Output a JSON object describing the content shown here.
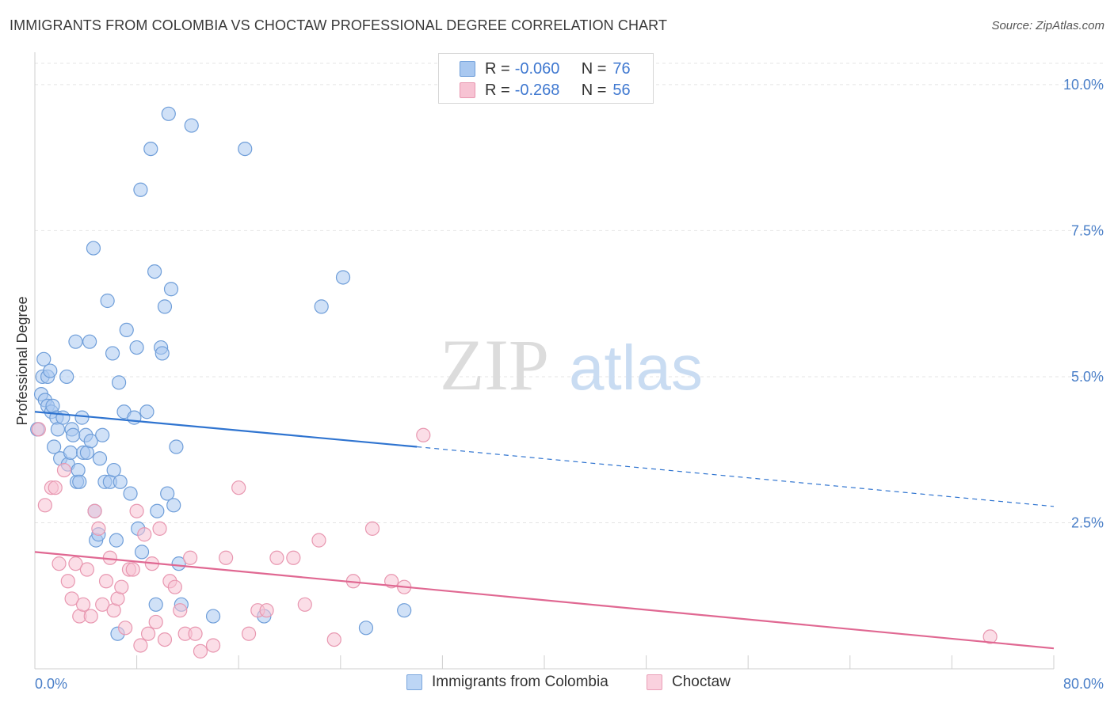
{
  "header": {
    "title": "IMMIGRANTS FROM COLOMBIA VS CHOCTAW PROFESSIONAL DEGREE CORRELATION CHART",
    "source": "Source: ZipAtlas.com"
  },
  "watermark": {
    "zip": "ZIP",
    "atlas": "atlas"
  },
  "stats_legend": {
    "rows": [
      {
        "r_label": "R =",
        "r_value": "-0.060",
        "n_label": "N =",
        "n_value": "76",
        "color": "#a9c8f0",
        "border": "#6f9ed9"
      },
      {
        "r_label": "R =",
        "r_value": "-0.268",
        "n_label": "N =",
        "n_value": "56",
        "color": "#f7c3d3",
        "border": "#e897b0"
      }
    ]
  },
  "bottom_legend": [
    {
      "label": "Immigrants from Colombia",
      "color": "#bdd6f5",
      "border": "#7aa6dd"
    },
    {
      "label": "Choctaw",
      "color": "#fad1de",
      "border": "#ea9fb7"
    }
  ],
  "chart_data": {
    "type": "scatter",
    "title": "IMMIGRANTS FROM COLOMBIA VS CHOCTAW PROFESSIONAL DEGREE CORRELATION CHART",
    "xlabel": "",
    "ylabel": "Professional Degree",
    "xlim": [
      0,
      80
    ],
    "ylim": [
      0,
      10.5
    ],
    "x_tick_labels": [
      "0.0%",
      "80.0%"
    ],
    "y_ticks": [
      2.5,
      5.0,
      7.5,
      10.0
    ],
    "y_tick_labels": [
      "2.5%",
      "5.0%",
      "7.5%",
      "10.0%"
    ],
    "grid": "horizontal dashed",
    "series": [
      {
        "name": "Immigrants from Colombia",
        "color": "#a9c8f0",
        "stroke": "#6f9ed9",
        "line_color": "#2f74d0",
        "trend": {
          "x0": 0,
          "y0": 4.4,
          "x1": 30,
          "y1": 3.8,
          "x_dash_end": 80,
          "y_dash_end": 2.78
        },
        "points": [
          [
            0.2,
            4.1
          ],
          [
            0.5,
            4.7
          ],
          [
            0.6,
            5.0
          ],
          [
            0.7,
            5.3
          ],
          [
            0.8,
            4.6
          ],
          [
            1.0,
            4.5
          ],
          [
            1.0,
            5.0
          ],
          [
            1.2,
            5.1
          ],
          [
            1.3,
            4.4
          ],
          [
            1.4,
            4.5
          ],
          [
            1.5,
            3.8
          ],
          [
            1.7,
            4.3
          ],
          [
            1.8,
            4.1
          ],
          [
            2.0,
            3.6
          ],
          [
            2.2,
            4.3
          ],
          [
            2.5,
            5.0
          ],
          [
            2.6,
            3.5
          ],
          [
            2.8,
            3.7
          ],
          [
            2.9,
            4.1
          ],
          [
            3.0,
            4.0
          ],
          [
            3.2,
            5.6
          ],
          [
            3.3,
            3.2
          ],
          [
            3.4,
            3.4
          ],
          [
            3.5,
            3.2
          ],
          [
            3.7,
            4.3
          ],
          [
            3.8,
            3.7
          ],
          [
            4.0,
            4.0
          ],
          [
            4.1,
            3.7
          ],
          [
            4.3,
            5.6
          ],
          [
            4.4,
            3.9
          ],
          [
            4.6,
            7.2
          ],
          [
            4.7,
            2.7
          ],
          [
            4.8,
            2.2
          ],
          [
            5.0,
            2.3
          ],
          [
            5.1,
            3.6
          ],
          [
            5.3,
            4.0
          ],
          [
            5.5,
            3.2
          ],
          [
            5.7,
            6.3
          ],
          [
            5.9,
            3.2
          ],
          [
            6.1,
            5.4
          ],
          [
            6.2,
            3.4
          ],
          [
            6.4,
            2.2
          ],
          [
            6.5,
            0.6
          ],
          [
            6.6,
            4.9
          ],
          [
            6.7,
            3.2
          ],
          [
            7.0,
            4.4
          ],
          [
            7.2,
            5.8
          ],
          [
            7.5,
            3.0
          ],
          [
            7.8,
            4.3
          ],
          [
            8.0,
            5.5
          ],
          [
            8.1,
            2.4
          ],
          [
            8.3,
            8.2
          ],
          [
            8.4,
            2.0
          ],
          [
            8.8,
            4.4
          ],
          [
            9.1,
            8.9
          ],
          [
            9.4,
            6.8
          ],
          [
            9.6,
            2.7
          ],
          [
            9.9,
            5.5
          ],
          [
            10.0,
            5.4
          ],
          [
            10.2,
            6.2
          ],
          [
            10.4,
            3.0
          ],
          [
            10.5,
            9.5
          ],
          [
            10.7,
            6.5
          ],
          [
            10.9,
            2.8
          ],
          [
            11.1,
            3.8
          ],
          [
            11.3,
            1.8
          ],
          [
            11.5,
            1.1
          ],
          [
            12.3,
            9.3
          ],
          [
            14.0,
            0.9
          ],
          [
            16.5,
            8.9
          ],
          [
            18.0,
            0.9
          ],
          [
            22.5,
            6.2
          ],
          [
            24.2,
            6.7
          ],
          [
            26.0,
            0.7
          ],
          [
            29.0,
            1.0
          ],
          [
            9.5,
            1.1
          ]
        ]
      },
      {
        "name": "Choctaw",
        "color": "#f7c3d3",
        "stroke": "#e897b0",
        "line_color": "#e06892",
        "trend": {
          "x0": 0,
          "y0": 2.0,
          "x1": 80,
          "y1": 0.35
        },
        "points": [
          [
            0.3,
            4.1
          ],
          [
            0.8,
            2.8
          ],
          [
            1.3,
            3.1
          ],
          [
            1.6,
            3.1
          ],
          [
            1.9,
            1.8
          ],
          [
            2.3,
            3.4
          ],
          [
            2.6,
            1.5
          ],
          [
            2.9,
            1.2
          ],
          [
            3.2,
            1.8
          ],
          [
            3.5,
            0.9
          ],
          [
            3.8,
            1.1
          ],
          [
            4.1,
            1.7
          ],
          [
            4.4,
            0.9
          ],
          [
            4.7,
            2.7
          ],
          [
            5.0,
            2.4
          ],
          [
            5.3,
            1.1
          ],
          [
            5.6,
            1.5
          ],
          [
            5.9,
            1.9
          ],
          [
            6.2,
            1.0
          ],
          [
            6.5,
            1.2
          ],
          [
            6.8,
            1.4
          ],
          [
            7.1,
            0.7
          ],
          [
            7.4,
            1.7
          ],
          [
            7.7,
            1.7
          ],
          [
            8.0,
            2.7
          ],
          [
            8.3,
            0.4
          ],
          [
            8.6,
            2.3
          ],
          [
            8.9,
            0.6
          ],
          [
            9.2,
            1.8
          ],
          [
            9.5,
            0.8
          ],
          [
            9.8,
            2.4
          ],
          [
            10.2,
            0.5
          ],
          [
            10.6,
            1.5
          ],
          [
            11.0,
            1.4
          ],
          [
            11.4,
            1.0
          ],
          [
            11.8,
            0.6
          ],
          [
            12.2,
            1.9
          ],
          [
            12.6,
            0.6
          ],
          [
            13.0,
            0.3
          ],
          [
            14.0,
            0.4
          ],
          [
            15.0,
            1.9
          ],
          [
            16.0,
            3.1
          ],
          [
            16.8,
            0.6
          ],
          [
            17.5,
            1.0
          ],
          [
            18.2,
            1.0
          ],
          [
            19.0,
            1.9
          ],
          [
            20.3,
            1.9
          ],
          [
            21.2,
            1.1
          ],
          [
            22.3,
            2.2
          ],
          [
            23.5,
            0.5
          ],
          [
            25.0,
            1.5
          ],
          [
            26.5,
            2.4
          ],
          [
            28.0,
            1.5
          ],
          [
            29.0,
            1.4
          ],
          [
            30.5,
            4.0
          ],
          [
            75.0,
            0.55
          ]
        ]
      }
    ]
  }
}
